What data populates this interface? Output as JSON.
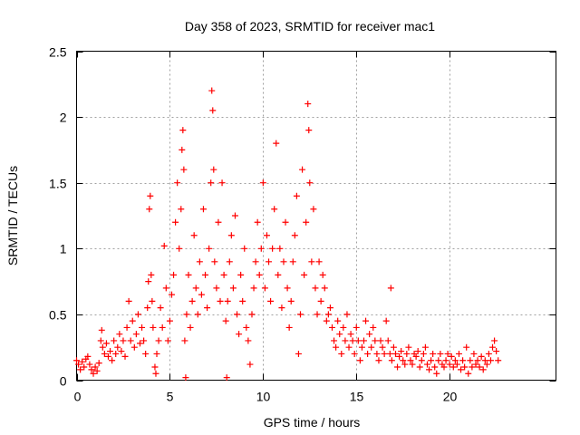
{
  "chart_data": {
    "type": "scatter",
    "title": "Day 358 of 2023, SRMTID for receiver mac1",
    "xlabel": "GPS time / hours",
    "ylabel": "SRMTID / TECUs",
    "xlim": [
      0,
      25.7
    ],
    "ylim": [
      0,
      2.5
    ],
    "xticks": [
      0,
      5,
      10,
      15,
      20
    ],
    "xtick_labels": [
      "0",
      "5",
      "10",
      "15",
      "20"
    ],
    "yticks": [
      0,
      0.5,
      1,
      1.5,
      2,
      2.5
    ],
    "ytick_labels": [
      "0",
      "0.5",
      "1",
      "1.5",
      "2",
      "2.5"
    ],
    "grid": true,
    "marker": "+",
    "color": "#ff0000",
    "series": [
      {
        "name": "SRMTID",
        "points": [
          [
            0.0,
            0.15
          ],
          [
            0.1,
            0.12
          ],
          [
            0.2,
            0.08
          ],
          [
            0.3,
            0.14
          ],
          [
            0.4,
            0.1
          ],
          [
            0.5,
            0.16
          ],
          [
            0.6,
            0.18
          ],
          [
            0.7,
            0.12
          ],
          [
            0.8,
            0.08
          ],
          [
            0.9,
            0.05
          ],
          [
            1.0,
            0.1
          ],
          [
            1.1,
            0.07
          ],
          [
            1.2,
            0.13
          ],
          [
            1.3,
            0.3
          ],
          [
            1.35,
            0.38
          ],
          [
            1.4,
            0.25
          ],
          [
            1.5,
            0.2
          ],
          [
            1.6,
            0.28
          ],
          [
            1.7,
            0.18
          ],
          [
            1.8,
            0.22
          ],
          [
            1.9,
            0.15
          ],
          [
            2.0,
            0.3
          ],
          [
            2.1,
            0.2
          ],
          [
            2.2,
            0.25
          ],
          [
            2.3,
            0.35
          ],
          [
            2.4,
            0.22
          ],
          [
            2.5,
            0.3
          ],
          [
            2.6,
            0.18
          ],
          [
            2.7,
            0.4
          ],
          [
            2.8,
            0.6
          ],
          [
            2.9,
            0.3
          ],
          [
            3.0,
            0.45
          ],
          [
            3.1,
            0.25
          ],
          [
            3.2,
            0.35
          ],
          [
            3.3,
            0.5
          ],
          [
            3.4,
            0.28
          ],
          [
            3.5,
            0.4
          ],
          [
            3.6,
            0.3
          ],
          [
            3.7,
            0.2
          ],
          [
            3.8,
            0.55
          ],
          [
            3.85,
            0.75
          ],
          [
            3.9,
            1.3
          ],
          [
            3.95,
            1.4
          ],
          [
            4.0,
            0.8
          ],
          [
            4.05,
            0.6
          ],
          [
            4.1,
            0.4
          ],
          [
            4.2,
            0.1
          ],
          [
            4.25,
            0.05
          ],
          [
            4.3,
            0.2
          ],
          [
            4.4,
            0.3
          ],
          [
            4.5,
            0.55
          ],
          [
            4.6,
            0.4
          ],
          [
            4.7,
            1.02
          ],
          [
            4.8,
            0.7
          ],
          [
            4.9,
            0.3
          ],
          [
            5.0,
            0.45
          ],
          [
            5.1,
            0.65
          ],
          [
            5.2,
            0.8
          ],
          [
            5.3,
            1.2
          ],
          [
            5.4,
            1.5
          ],
          [
            5.5,
            1.0
          ],
          [
            5.6,
            1.3
          ],
          [
            5.65,
            1.75
          ],
          [
            5.7,
            1.9
          ],
          [
            5.75,
            1.6
          ],
          [
            5.8,
            0.3
          ],
          [
            5.85,
            0.02
          ],
          [
            5.9,
            0.5
          ],
          [
            6.0,
            0.8
          ],
          [
            6.1,
            0.4
          ],
          [
            6.2,
            0.6
          ],
          [
            6.3,
            1.1
          ],
          [
            6.4,
            0.7
          ],
          [
            6.5,
            0.5
          ],
          [
            6.6,
            0.9
          ],
          [
            6.7,
            0.65
          ],
          [
            6.8,
            1.3
          ],
          [
            6.9,
            0.8
          ],
          [
            7.0,
            0.55
          ],
          [
            7.1,
            1.0
          ],
          [
            7.2,
            1.5
          ],
          [
            7.25,
            2.2
          ],
          [
            7.3,
            2.05
          ],
          [
            7.35,
            1.6
          ],
          [
            7.4,
            0.9
          ],
          [
            7.5,
            0.7
          ],
          [
            7.6,
            1.2
          ],
          [
            7.7,
            0.6
          ],
          [
            7.8,
            1.5
          ],
          [
            7.9,
            0.8
          ],
          [
            8.0,
            0.45
          ],
          [
            8.05,
            0.02
          ],
          [
            8.1,
            0.6
          ],
          [
            8.2,
            0.9
          ],
          [
            8.3,
            1.1
          ],
          [
            8.4,
            0.7
          ],
          [
            8.5,
            1.25
          ],
          [
            8.6,
            0.5
          ],
          [
            8.7,
            0.35
          ],
          [
            8.8,
            0.8
          ],
          [
            8.9,
            0.6
          ],
          [
            9.0,
            1.0
          ],
          [
            9.1,
            0.4
          ],
          [
            9.2,
            0.3
          ],
          [
            9.3,
            0.12
          ],
          [
            9.4,
            0.5
          ],
          [
            9.5,
            0.7
          ],
          [
            9.6,
            0.9
          ],
          [
            9.7,
            1.2
          ],
          [
            9.8,
            0.8
          ],
          [
            9.9,
            1.0
          ],
          [
            10.0,
            1.5
          ],
          [
            10.1,
            0.7
          ],
          [
            10.2,
            1.1
          ],
          [
            10.3,
            0.9
          ],
          [
            10.4,
            0.6
          ],
          [
            10.5,
            1.0
          ],
          [
            10.6,
            1.3
          ],
          [
            10.7,
            1.8
          ],
          [
            10.8,
            0.8
          ],
          [
            10.9,
            1.0
          ],
          [
            11.0,
            0.55
          ],
          [
            11.1,
            0.9
          ],
          [
            11.2,
            1.2
          ],
          [
            11.3,
            0.7
          ],
          [
            11.4,
            0.4
          ],
          [
            11.5,
            0.6
          ],
          [
            11.6,
            0.9
          ],
          [
            11.7,
            1.1
          ],
          [
            11.8,
            1.4
          ],
          [
            11.9,
            0.2
          ],
          [
            12.0,
            0.5
          ],
          [
            12.1,
            1.6
          ],
          [
            12.2,
            0.8
          ],
          [
            12.3,
            1.2
          ],
          [
            12.4,
            2.1
          ],
          [
            12.45,
            1.9
          ],
          [
            12.5,
            1.5
          ],
          [
            12.6,
            0.9
          ],
          [
            12.7,
            1.3
          ],
          [
            12.8,
            0.7
          ],
          [
            12.9,
            0.5
          ],
          [
            13.0,
            0.9
          ],
          [
            13.1,
            0.6
          ],
          [
            13.2,
            0.8
          ],
          [
            13.3,
            0.7
          ],
          [
            13.4,
            0.45
          ],
          [
            13.5,
            0.5
          ],
          [
            13.6,
            0.55
          ],
          [
            13.7,
            0.4
          ],
          [
            13.8,
            0.3
          ],
          [
            13.9,
            0.25
          ],
          [
            14.0,
            0.45
          ],
          [
            14.1,
            0.35
          ],
          [
            14.2,
            0.2
          ],
          [
            14.3,
            0.4
          ],
          [
            14.4,
            0.3
          ],
          [
            14.5,
            0.5
          ],
          [
            14.6,
            0.25
          ],
          [
            14.7,
            0.35
          ],
          [
            14.8,
            0.3
          ],
          [
            14.9,
            0.2
          ],
          [
            15.0,
            0.4
          ],
          [
            15.1,
            0.3
          ],
          [
            15.2,
            0.15
          ],
          [
            15.3,
            0.25
          ],
          [
            15.4,
            0.3
          ],
          [
            15.5,
            0.45
          ],
          [
            15.6,
            0.2
          ],
          [
            15.7,
            0.35
          ],
          [
            15.8,
            0.25
          ],
          [
            15.9,
            0.4
          ],
          [
            16.0,
            0.3
          ],
          [
            16.1,
            0.2
          ],
          [
            16.2,
            0.15
          ],
          [
            16.3,
            0.3
          ],
          [
            16.4,
            0.25
          ],
          [
            16.5,
            0.2
          ],
          [
            16.6,
            0.45
          ],
          [
            16.7,
            0.3
          ],
          [
            16.8,
            0.2
          ],
          [
            16.85,
            0.7
          ],
          [
            16.9,
            0.15
          ],
          [
            17.0,
            0.25
          ],
          [
            17.1,
            0.2
          ],
          [
            17.2,
            0.1
          ],
          [
            17.3,
            0.18
          ],
          [
            17.4,
            0.22
          ],
          [
            17.5,
            0.15
          ],
          [
            17.6,
            0.12
          ],
          [
            17.7,
            0.2
          ],
          [
            17.8,
            0.25
          ],
          [
            17.9,
            0.15
          ],
          [
            18.0,
            0.12
          ],
          [
            18.1,
            0.2
          ],
          [
            18.2,
            0.18
          ],
          [
            18.3,
            0.22
          ],
          [
            18.4,
            0.1
          ],
          [
            18.5,
            0.15
          ],
          [
            18.6,
            0.2
          ],
          [
            18.7,
            0.25
          ],
          [
            18.8,
            0.12
          ],
          [
            18.9,
            0.08
          ],
          [
            19.0,
            0.15
          ],
          [
            19.1,
            0.2
          ],
          [
            19.2,
            0.1
          ],
          [
            19.3,
            0.05
          ],
          [
            19.4,
            0.15
          ],
          [
            19.5,
            0.2
          ],
          [
            19.6,
            0.12
          ],
          [
            19.7,
            0.1
          ],
          [
            19.8,
            0.15
          ],
          [
            19.9,
            0.2
          ],
          [
            20.0,
            0.12
          ],
          [
            20.1,
            0.18
          ],
          [
            20.2,
            0.1
          ],
          [
            20.3,
            0.15
          ],
          [
            20.4,
            0.12
          ],
          [
            20.5,
            0.2
          ],
          [
            20.6,
            0.08
          ],
          [
            20.7,
            0.15
          ],
          [
            20.8,
            0.1
          ],
          [
            20.9,
            0.25
          ],
          [
            21.0,
            0.05
          ],
          [
            21.1,
            0.15
          ],
          [
            21.2,
            0.1
          ],
          [
            21.3,
            0.2
          ],
          [
            21.4,
            0.12
          ],
          [
            21.5,
            0.15
          ],
          [
            21.6,
            0.1
          ],
          [
            21.7,
            0.18
          ],
          [
            21.8,
            0.08
          ],
          [
            21.9,
            0.15
          ],
          [
            22.0,
            0.12
          ],
          [
            22.1,
            0.2
          ],
          [
            22.2,
            0.15
          ],
          [
            22.3,
            0.25
          ],
          [
            22.4,
            0.3
          ],
          [
            22.5,
            0.22
          ],
          [
            22.6,
            0.15
          ]
        ]
      }
    ]
  }
}
